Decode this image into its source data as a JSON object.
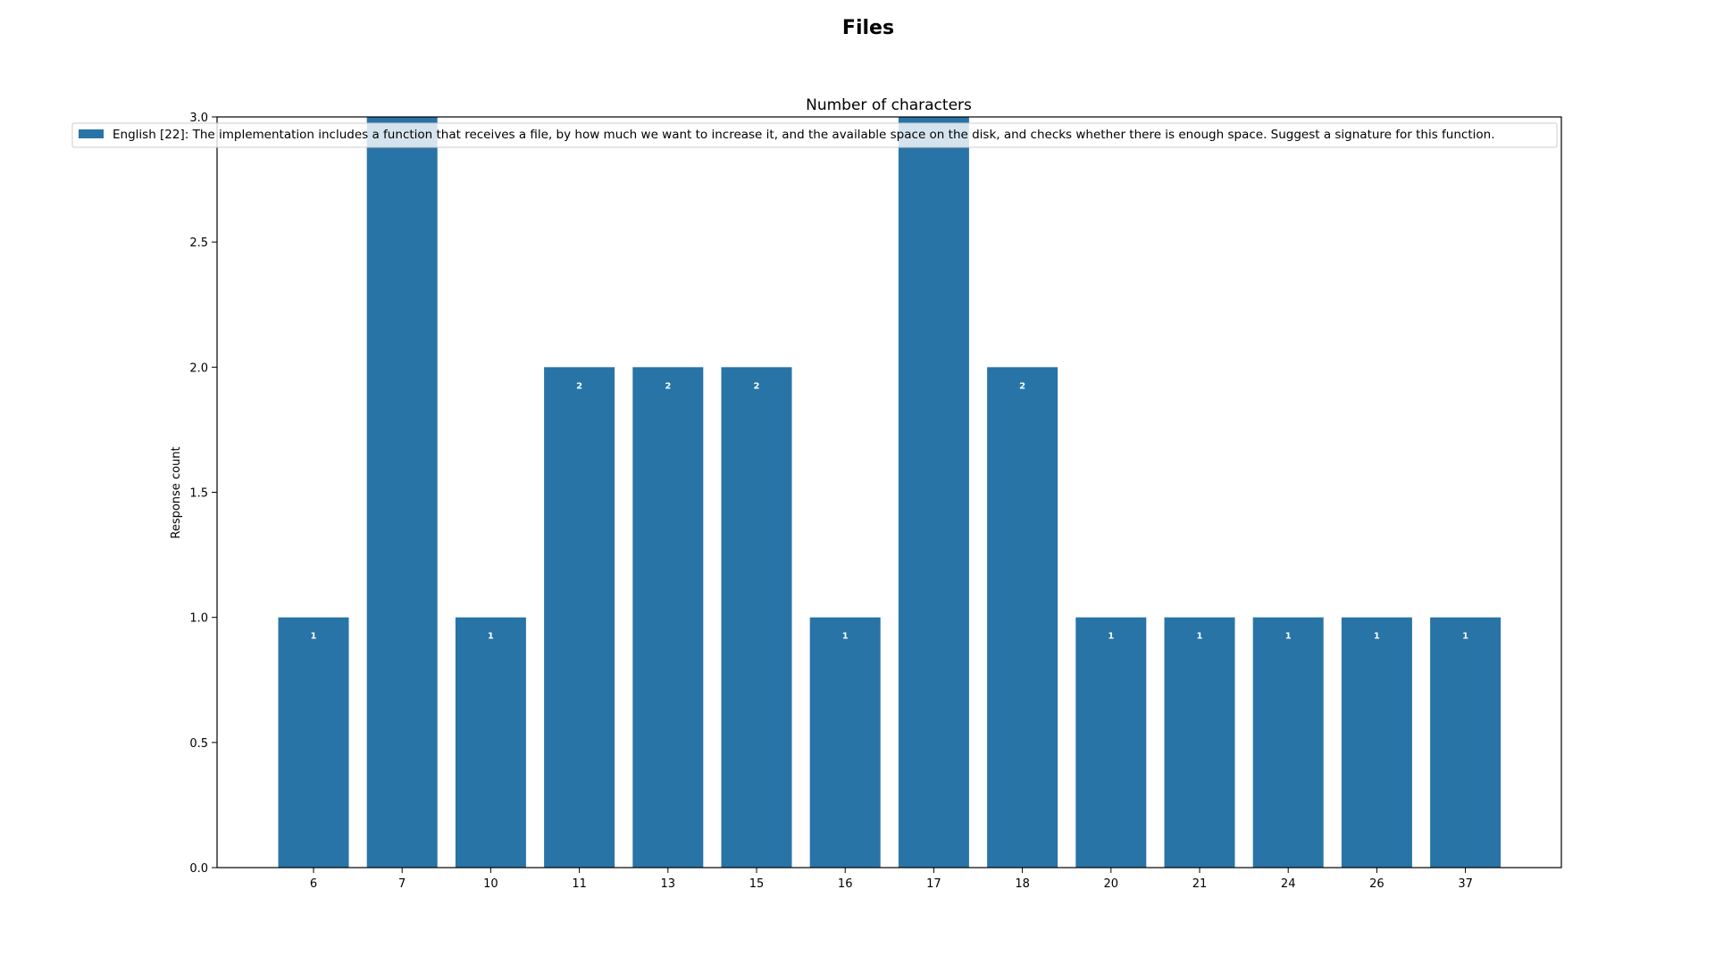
{
  "chart_data": {
    "type": "bar",
    "suptitle": "Files",
    "title": "Number of characters",
    "xlabel": "",
    "ylabel": "Response count",
    "categories": [
      "6",
      "7",
      "10",
      "11",
      "13",
      "15",
      "16",
      "17",
      "18",
      "20",
      "21",
      "24",
      "26",
      "37"
    ],
    "series": [
      {
        "name": "English [22]: The implementation includes a function that receives a file, by how much we want to increase it, and the available space on the disk, and checks whether there is enough space. Suggest a signature for this function.",
        "values": [
          1,
          3,
          1,
          2,
          2,
          2,
          1,
          3,
          2,
          1,
          1,
          1,
          1,
          1
        ],
        "color": "#2874a6"
      }
    ],
    "data_labels": [
      "1",
      "3",
      "1",
      "2",
      "2",
      "2",
      "1",
      "3",
      "2",
      "1",
      "1",
      "1",
      "1",
      "1"
    ],
    "ylim": [
      0,
      3.0
    ],
    "yticks": [
      "0.0",
      "0.5",
      "1.0",
      "1.5",
      "2.0",
      "2.5",
      "3.0"
    ],
    "ytick_values": [
      0,
      0.5,
      1.0,
      1.5,
      2.0,
      2.5,
      3.0
    ],
    "grid": false,
    "legend_position": "top"
  }
}
